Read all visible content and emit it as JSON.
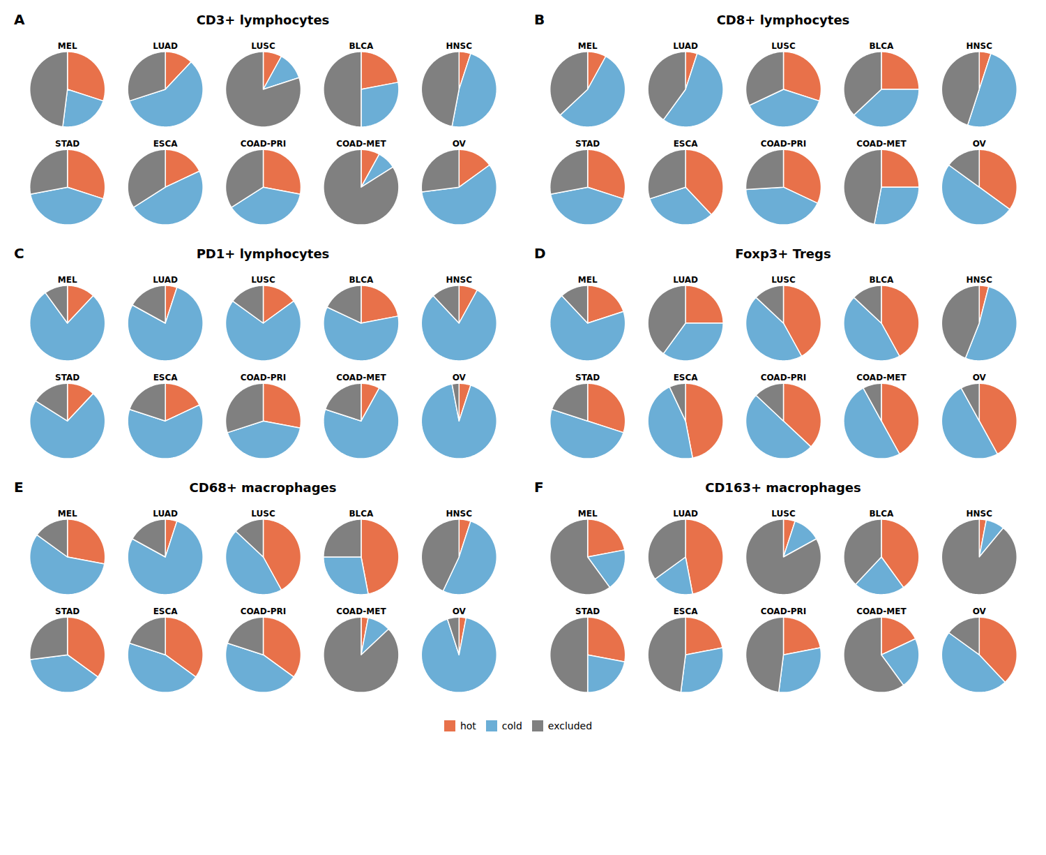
{
  "chart_data": [
    {
      "type": "pie",
      "title": "CD3+ lymphocytes",
      "annotations": [
        "A"
      ],
      "categories": [
        "hot",
        "cold",
        "excluded"
      ],
      "colors": [
        "#E8714A",
        "#6BAED6",
        "#808080"
      ],
      "legend": "bottom",
      "series": [
        {
          "name": "MEL",
          "values": [
            30,
            22,
            48
          ]
        },
        {
          "name": "LUAD",
          "values": [
            12,
            58,
            30
          ]
        },
        {
          "name": "LUSC",
          "values": [
            8,
            12,
            80
          ]
        },
        {
          "name": "BLCA",
          "values": [
            22,
            28,
            50
          ]
        },
        {
          "name": "HNSC",
          "values": [
            5,
            48,
            47
          ]
        },
        {
          "name": "STAD",
          "values": [
            30,
            42,
            28
          ]
        },
        {
          "name": "ESCA",
          "values": [
            18,
            48,
            34
          ]
        },
        {
          "name": "COAD-PRI",
          "values": [
            28,
            38,
            34
          ]
        },
        {
          "name": "COAD-MET",
          "values": [
            8,
            8,
            84
          ]
        },
        {
          "name": "OV",
          "values": [
            15,
            58,
            27
          ]
        }
      ]
    },
    {
      "type": "pie",
      "title": "CD8+ lymphocytes",
      "annotations": [
        "B"
      ],
      "categories": [
        "hot",
        "cold",
        "excluded"
      ],
      "colors": [
        "#E8714A",
        "#6BAED6",
        "#808080"
      ],
      "legend": "bottom",
      "series": [
        {
          "name": "MEL",
          "values": [
            8,
            55,
            37
          ]
        },
        {
          "name": "LUAD",
          "values": [
            5,
            55,
            40
          ]
        },
        {
          "name": "LUSC",
          "values": [
            30,
            38,
            32
          ]
        },
        {
          "name": "BLCA",
          "values": [
            25,
            38,
            37
          ]
        },
        {
          "name": "HNSC",
          "values": [
            5,
            50,
            45
          ]
        },
        {
          "name": "STAD",
          "values": [
            30,
            42,
            28
          ]
        },
        {
          "name": "ESCA",
          "values": [
            38,
            32,
            30
          ]
        },
        {
          "name": "COAD-PRI",
          "values": [
            32,
            42,
            26
          ]
        },
        {
          "name": "COAD-MET",
          "values": [
            25,
            28,
            47
          ]
        },
        {
          "name": "OV",
          "values": [
            35,
            50,
            15
          ]
        }
      ]
    },
    {
      "type": "pie",
      "title": "PD1+ lymphocytes",
      "annotations": [
        "C"
      ],
      "categories": [
        "hot",
        "cold",
        "excluded"
      ],
      "colors": [
        "#E8714A",
        "#6BAED6",
        "#808080"
      ],
      "legend": "bottom",
      "series": [
        {
          "name": "MEL",
          "values": [
            12,
            78,
            10
          ]
        },
        {
          "name": "LUAD",
          "values": [
            5,
            78,
            17
          ]
        },
        {
          "name": "LUSC",
          "values": [
            15,
            70,
            15
          ]
        },
        {
          "name": "BLCA",
          "values": [
            22,
            60,
            18
          ]
        },
        {
          "name": "HNSC",
          "values": [
            8,
            80,
            12
          ]
        },
        {
          "name": "STAD",
          "values": [
            12,
            72,
            16
          ]
        },
        {
          "name": "ESCA",
          "values": [
            18,
            62,
            20
          ]
        },
        {
          "name": "COAD-PRI",
          "values": [
            28,
            42,
            30
          ]
        },
        {
          "name": "COAD-MET",
          "values": [
            8,
            72,
            20
          ]
        },
        {
          "name": "OV",
          "values": [
            5,
            92,
            3
          ]
        }
      ]
    },
    {
      "type": "pie",
      "title": "Foxp3+ Tregs",
      "annotations": [
        "D"
      ],
      "categories": [
        "hot",
        "cold",
        "excluded"
      ],
      "colors": [
        "#E8714A",
        "#6BAED6",
        "#808080"
      ],
      "legend": "bottom",
      "series": [
        {
          "name": "MEL",
          "values": [
            20,
            68,
            12
          ]
        },
        {
          "name": "LUAD",
          "values": [
            25,
            35,
            40
          ]
        },
        {
          "name": "LUSC",
          "values": [
            42,
            45,
            13
          ]
        },
        {
          "name": "BLCA",
          "values": [
            42,
            45,
            13
          ]
        },
        {
          "name": "HNSC",
          "values": [
            4,
            52,
            44
          ]
        },
        {
          "name": "STAD",
          "values": [
            30,
            50,
            20
          ]
        },
        {
          "name": "ESCA",
          "values": [
            47,
            46,
            7
          ]
        },
        {
          "name": "COAD-PRI",
          "values": [
            37,
            50,
            13
          ]
        },
        {
          "name": "COAD-MET",
          "values": [
            42,
            50,
            8
          ]
        },
        {
          "name": "OV",
          "values": [
            42,
            50,
            8
          ]
        }
      ]
    },
    {
      "type": "pie",
      "title": "CD68+ macrophages",
      "annotations": [
        "E"
      ],
      "categories": [
        "hot",
        "cold",
        "excluded"
      ],
      "colors": [
        "#E8714A",
        "#6BAED6",
        "#808080"
      ],
      "legend": "bottom",
      "series": [
        {
          "name": "MEL",
          "values": [
            28,
            57,
            15
          ]
        },
        {
          "name": "LUAD",
          "values": [
            5,
            78,
            17
          ]
        },
        {
          "name": "LUSC",
          "values": [
            42,
            45,
            13
          ]
        },
        {
          "name": "BLCA",
          "values": [
            47,
            28,
            25
          ]
        },
        {
          "name": "HNSC",
          "values": [
            5,
            52,
            43
          ]
        },
        {
          "name": "STAD",
          "values": [
            35,
            38,
            27
          ]
        },
        {
          "name": "ESCA",
          "values": [
            35,
            45,
            20
          ]
        },
        {
          "name": "COAD-PRI",
          "values": [
            35,
            45,
            20
          ]
        },
        {
          "name": "COAD-MET",
          "values": [
            3,
            10,
            87
          ]
        },
        {
          "name": "OV",
          "values": [
            3,
            92,
            5
          ]
        }
      ]
    },
    {
      "type": "pie",
      "title": "CD163+ macrophages",
      "annotations": [
        "F"
      ],
      "categories": [
        "hot",
        "cold",
        "excluded"
      ],
      "colors": [
        "#E8714A",
        "#6BAED6",
        "#808080"
      ],
      "legend": "bottom",
      "series": [
        {
          "name": "MEL",
          "values": [
            22,
            18,
            60
          ]
        },
        {
          "name": "LUAD",
          "values": [
            47,
            18,
            35
          ]
        },
        {
          "name": "LUSC",
          "values": [
            5,
            12,
            83
          ]
        },
        {
          "name": "BLCA",
          "values": [
            40,
            22,
            38
          ]
        },
        {
          "name": "HNSC",
          "values": [
            3,
            8,
            89
          ]
        },
        {
          "name": "STAD",
          "values": [
            28,
            22,
            50
          ]
        },
        {
          "name": "ESCA",
          "values": [
            22,
            30,
            48
          ]
        },
        {
          "name": "COAD-PRI",
          "values": [
            22,
            30,
            48
          ]
        },
        {
          "name": "COAD-MET",
          "values": [
            18,
            22,
            60
          ]
        },
        {
          "name": "OV",
          "values": [
            38,
            47,
            15
          ]
        }
      ]
    }
  ]
}
